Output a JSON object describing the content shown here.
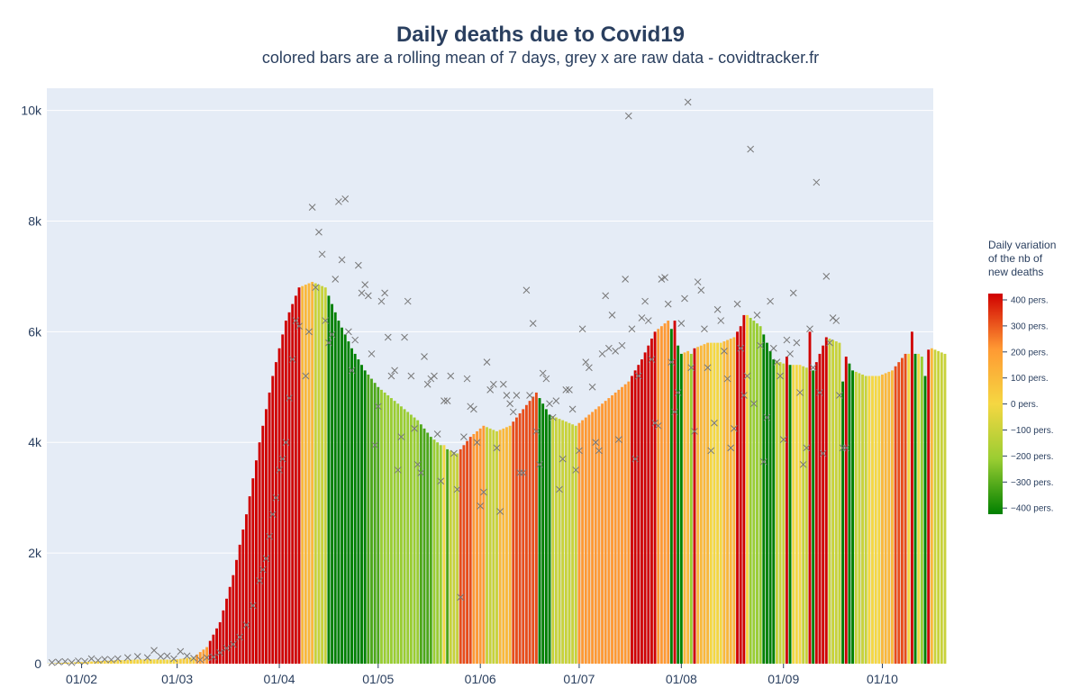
{
  "chart_data": {
    "type": "bar",
    "title": "Daily deaths due to Covid19",
    "subtitle": "colored bars are a rolling mean of 7 days, grey x are raw data - covidtracker.fr",
    "x_start": "2020-01-22",
    "ylim": [
      0,
      10400
    ],
    "y_ticks": [
      0,
      2000,
      4000,
      6000,
      8000,
      10000
    ],
    "y_tick_labels": [
      "0",
      "2k",
      "4k",
      "6k",
      "8k",
      "10k"
    ],
    "x_tick_labels": [
      "01/02",
      "01/03",
      "01/04",
      "01/05",
      "01/06",
      "01/07",
      "01/08",
      "01/09",
      "01/10"
    ],
    "series": [
      {
        "name": "Daily deaths (rolling mean 7 days)",
        "marker": "bar",
        "keypoints": [
          [
            0,
            5
          ],
          [
            10,
            30
          ],
          [
            20,
            60
          ],
          [
            30,
            80
          ],
          [
            38,
            70
          ],
          [
            44,
            120
          ],
          [
            48,
            300
          ],
          [
            52,
            750
          ],
          [
            56,
            1600
          ],
          [
            60,
            2700
          ],
          [
            64,
            4000
          ],
          [
            68,
            5200
          ],
          [
            72,
            6200
          ],
          [
            76,
            6800
          ],
          [
            80,
            6900
          ],
          [
            84,
            6800
          ],
          [
            88,
            6200
          ],
          [
            92,
            5700
          ],
          [
            96,
            5300
          ],
          [
            100,
            5000
          ],
          [
            104,
            4800
          ],
          [
            108,
            4600
          ],
          [
            112,
            4400
          ],
          [
            116,
            4100
          ],
          [
            120,
            3900
          ],
          [
            124,
            3800
          ],
          [
            128,
            4100
          ],
          [
            132,
            4300
          ],
          [
            136,
            4200
          ],
          [
            140,
            4300
          ],
          [
            144,
            4600
          ],
          [
            148,
            4900
          ],
          [
            152,
            4500
          ],
          [
            156,
            4400
          ],
          [
            160,
            4300
          ],
          [
            164,
            4500
          ],
          [
            168,
            4700
          ],
          [
            172,
            4900
          ],
          [
            176,
            5100
          ],
          [
            180,
            5500
          ],
          [
            184,
            6000
          ],
          [
            188,
            6200
          ],
          [
            192,
            5600
          ],
          [
            196,
            5700
          ],
          [
            200,
            5800
          ],
          [
            204,
            5800
          ],
          [
            208,
            5900
          ],
          [
            212,
            6300
          ],
          [
            216,
            6100
          ],
          [
            220,
            5500
          ],
          [
            224,
            5400
          ],
          [
            228,
            5400
          ],
          [
            232,
            5300
          ],
          [
            236,
            5900
          ],
          [
            240,
            5800
          ],
          [
            244,
            5300
          ],
          [
            248,
            5200
          ],
          [
            252,
            5200
          ],
          [
            256,
            5300
          ],
          [
            260,
            5600
          ],
          [
            264,
            5600
          ],
          [
            268,
            5700
          ],
          [
            272,
            5600
          ]
        ],
        "spikes": [
          [
            72,
            6200
          ],
          [
            190,
            6200
          ],
          [
            211,
            6300
          ],
          [
            231,
            6000
          ],
          [
            262,
            6000
          ],
          [
            266,
            5200
          ]
        ],
        "dips": [
          [
            120,
            3950
          ],
          [
            195,
            5600
          ],
          [
            224,
            5550
          ],
          [
            241,
            5100
          ],
          [
            265,
            5550
          ]
        ]
      },
      {
        "name": "Raw daily deaths",
        "marker": "x",
        "color": "#777777",
        "values": [
          [
            1,
            20
          ],
          [
            3,
            30
          ],
          [
            5,
            40
          ],
          [
            7,
            20
          ],
          [
            9,
            50
          ],
          [
            11,
            40
          ],
          [
            13,
            90
          ],
          [
            15,
            60
          ],
          [
            17,
            80
          ],
          [
            19,
            70
          ],
          [
            21,
            90
          ],
          [
            24,
            110
          ],
          [
            27,
            130
          ],
          [
            30,
            110
          ],
          [
            32,
            240
          ],
          [
            34,
            130
          ],
          [
            36,
            140
          ],
          [
            38,
            90
          ],
          [
            40,
            220
          ],
          [
            42,
            140
          ],
          [
            44,
            100
          ],
          [
            46,
            70
          ],
          [
            48,
            110
          ],
          [
            50,
            120
          ],
          [
            52,
            200
          ],
          [
            54,
            280
          ],
          [
            56,
            350
          ],
          [
            58,
            480
          ],
          [
            60,
            700
          ],
          [
            62,
            1050
          ],
          [
            64,
            1500
          ],
          [
            65,
            1700
          ],
          [
            66,
            1900
          ],
          [
            67,
            2300
          ],
          [
            68,
            2700
          ],
          [
            69,
            3000
          ],
          [
            70,
            3500
          ],
          [
            71,
            3700
          ],
          [
            72,
            4000
          ],
          [
            73,
            4800
          ],
          [
            74,
            5500
          ],
          [
            75,
            6200
          ],
          [
            76,
            6100
          ],
          [
            78,
            5200
          ],
          [
            79,
            6000
          ],
          [
            80,
            8250
          ],
          [
            81,
            6800
          ],
          [
            82,
            7800
          ],
          [
            83,
            7400
          ],
          [
            84,
            6200
          ],
          [
            85,
            5800
          ],
          [
            86,
            5950
          ],
          [
            87,
            6950
          ],
          [
            88,
            8350
          ],
          [
            89,
            7300
          ],
          [
            90,
            8400
          ],
          [
            91,
            6000
          ],
          [
            92,
            5300
          ],
          [
            93,
            5850
          ],
          [
            94,
            7200
          ],
          [
            95,
            6700
          ],
          [
            96,
            6850
          ],
          [
            97,
            6650
          ],
          [
            98,
            5600
          ],
          [
            99,
            3950
          ],
          [
            100,
            4650
          ],
          [
            101,
            6550
          ],
          [
            102,
            6700
          ],
          [
            103,
            5900
          ],
          [
            104,
            5200
          ],
          [
            105,
            5300
          ],
          [
            106,
            3500
          ],
          [
            107,
            4100
          ],
          [
            108,
            5900
          ],
          [
            109,
            6550
          ],
          [
            110,
            5200
          ],
          [
            111,
            4250
          ],
          [
            112,
            3600
          ],
          [
            113,
            3450
          ],
          [
            114,
            5550
          ],
          [
            115,
            5050
          ],
          [
            116,
            5150
          ],
          [
            117,
            5200
          ],
          [
            118,
            4150
          ],
          [
            119,
            3300
          ],
          [
            120,
            4750
          ],
          [
            121,
            4750
          ],
          [
            122,
            5200
          ],
          [
            123,
            3800
          ],
          [
            124,
            3150
          ],
          [
            125,
            1200
          ],
          [
            126,
            4100
          ],
          [
            127,
            5150
          ],
          [
            128,
            4650
          ],
          [
            129,
            4600
          ],
          [
            130,
            4000
          ],
          [
            131,
            2850
          ],
          [
            132,
            3100
          ],
          [
            133,
            5450
          ],
          [
            134,
            4950
          ],
          [
            135,
            5050
          ],
          [
            136,
            3900
          ],
          [
            137,
            2750
          ],
          [
            138,
            5050
          ],
          [
            139,
            4850
          ],
          [
            140,
            4700
          ],
          [
            141,
            4550
          ],
          [
            142,
            4850
          ],
          [
            143,
            3450
          ],
          [
            144,
            3450
          ],
          [
            145,
            6750
          ],
          [
            146,
            4850
          ],
          [
            147,
            6150
          ],
          [
            148,
            4200
          ],
          [
            149,
            3600
          ],
          [
            150,
            5250
          ],
          [
            151,
            5150
          ],
          [
            152,
            4700
          ],
          [
            153,
            4450
          ],
          [
            154,
            4750
          ],
          [
            155,
            3150
          ],
          [
            156,
            3700
          ],
          [
            157,
            4950
          ],
          [
            158,
            4950
          ],
          [
            159,
            4600
          ],
          [
            160,
            3500
          ],
          [
            161,
            3850
          ],
          [
            162,
            6050
          ],
          [
            163,
            5450
          ],
          [
            164,
            5350
          ],
          [
            165,
            5000
          ],
          [
            166,
            4000
          ],
          [
            167,
            3850
          ],
          [
            168,
            5600
          ],
          [
            169,
            6650
          ],
          [
            170,
            5700
          ],
          [
            171,
            6300
          ],
          [
            172,
            5650
          ],
          [
            173,
            4050
          ],
          [
            174,
            5750
          ],
          [
            175,
            6950
          ],
          [
            176,
            9900
          ],
          [
            177,
            6050
          ],
          [
            178,
            3700
          ],
          [
            179,
            5200
          ],
          [
            180,
            6250
          ],
          [
            181,
            6550
          ],
          [
            182,
            6200
          ],
          [
            183,
            5500
          ],
          [
            184,
            4350
          ],
          [
            185,
            4300
          ],
          [
            186,
            6950
          ],
          [
            187,
            6980
          ],
          [
            188,
            6500
          ],
          [
            189,
            5450
          ],
          [
            190,
            4550
          ],
          [
            191,
            4900
          ],
          [
            192,
            6150
          ],
          [
            193,
            6600
          ],
          [
            194,
            10150
          ],
          [
            195,
            5350
          ],
          [
            196,
            4200
          ],
          [
            197,
            6900
          ],
          [
            198,
            6750
          ],
          [
            199,
            6050
          ],
          [
            200,
            5350
          ],
          [
            201,
            3850
          ],
          [
            202,
            4350
          ],
          [
            203,
            6400
          ],
          [
            204,
            6200
          ],
          [
            205,
            5650
          ],
          [
            206,
            5150
          ],
          [
            207,
            3900
          ],
          [
            208,
            4250
          ],
          [
            209,
            6500
          ],
          [
            210,
            5700
          ],
          [
            211,
            4850
          ],
          [
            212,
            5200
          ],
          [
            213,
            9300
          ],
          [
            214,
            4700
          ],
          [
            215,
            6300
          ],
          [
            216,
            5750
          ],
          [
            217,
            3650
          ],
          [
            218,
            4450
          ],
          [
            219,
            6550
          ],
          [
            220,
            5700
          ],
          [
            221,
            5450
          ],
          [
            222,
            5200
          ],
          [
            223,
            4050
          ],
          [
            224,
            5850
          ],
          [
            225,
            5600
          ],
          [
            226,
            6700
          ],
          [
            227,
            5800
          ],
          [
            228,
            4900
          ],
          [
            229,
            3600
          ],
          [
            230,
            3900
          ],
          [
            231,
            6050
          ],
          [
            232,
            5350
          ],
          [
            233,
            8700
          ],
          [
            234,
            4900
          ],
          [
            235,
            3800
          ],
          [
            236,
            7000
          ],
          [
            237,
            5800
          ],
          [
            238,
            6250
          ],
          [
            239,
            6200
          ],
          [
            240,
            4850
          ],
          [
            241,
            3900
          ],
          [
            242,
            3900
          ]
        ]
      }
    ],
    "colorbar": {
      "title": [
        "Daily variation",
        "of the nb of",
        "new deaths"
      ],
      "tick_labels": [
        "400 pers.",
        "300 pers.",
        "200 pers.",
        "100 pers.",
        "0 pers.",
        "−100 pers.",
        "−200 pers.",
        "−300 pers.",
        "−400 pers."
      ],
      "range": [
        -400,
        400
      ],
      "colors": [
        "#008000",
        "#9acd32",
        "#f5d742",
        "#ff9933",
        "#d00000"
      ]
    },
    "colors": {
      "plot_background": "#e5ecf6",
      "grid": "#ffffff",
      "text": "#2a3f5f",
      "marker": "#777777"
    }
  }
}
